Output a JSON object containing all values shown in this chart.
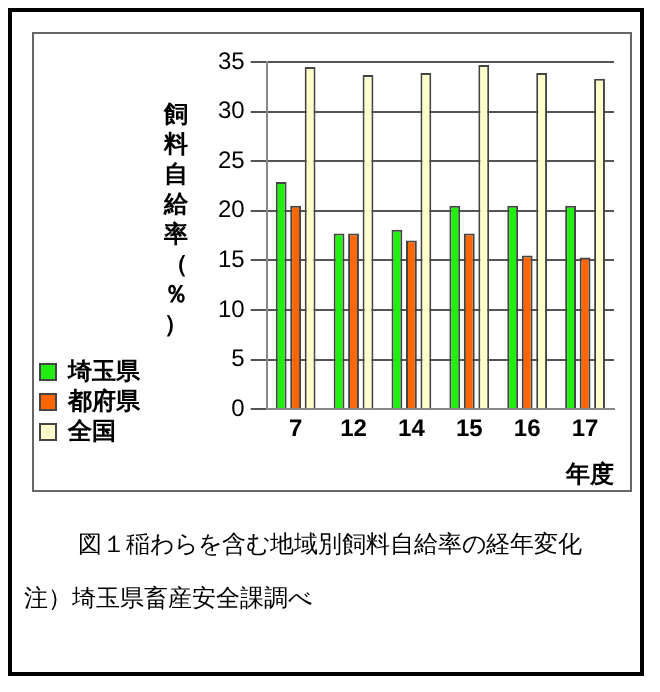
{
  "chart_data": {
    "type": "bar",
    "title": "図１稲わらを含む地域別飼料自給率の経年変化",
    "annotations": [
      "注）埼玉県畜産安全課調べ"
    ],
    "xlabel": "年度",
    "ylabel": "飼料自給率（％）",
    "categories": [
      "7",
      "12",
      "14",
      "15",
      "16",
      "17"
    ],
    "series": [
      {
        "name": "埼玉県",
        "color": "#22ee11",
        "values": [
          22.9,
          17.7,
          18.1,
          20.5,
          20.5,
          20.5
        ]
      },
      {
        "name": "都府県",
        "color": "#ff6600",
        "values": [
          20.5,
          17.7,
          17,
          17.7,
          15.5,
          15.3
        ]
      },
      {
        "name": "全国",
        "color": "#ffffcc",
        "values": [
          34.5,
          33.7,
          33.9,
          34.7,
          33.9,
          33.3
        ]
      }
    ],
    "ylim": [
      0,
      35
    ],
    "yticks": [
      0,
      5,
      10,
      15,
      20,
      25,
      30,
      35
    ],
    "grid": "y",
    "legend": "bottom left"
  }
}
